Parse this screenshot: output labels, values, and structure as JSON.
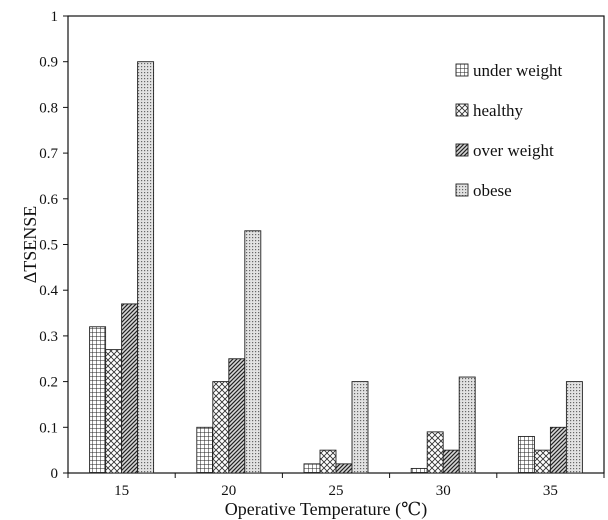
{
  "chart_data": {
    "type": "bar",
    "title": "",
    "xlabel": "Operative Temperature (℃)",
    "ylabel": "ΔTSENSE",
    "categories": [
      "15",
      "20",
      "25",
      "30",
      "35"
    ],
    "ylim": [
      0,
      1
    ],
    "yticks": [
      "0",
      "0.1",
      "0.2",
      "0.3",
      "0.4",
      "0.5",
      "0.6",
      "0.7",
      "0.8",
      "0.9",
      "1"
    ],
    "grid": false,
    "legend_position": "top-right",
    "series": [
      {
        "name": "under weight",
        "pattern": "grid",
        "values": [
          0.32,
          0.1,
          0.02,
          0.01,
          0.08
        ]
      },
      {
        "name": "healthy",
        "pattern": "crosshatch",
        "values": [
          0.27,
          0.2,
          0.05,
          0.09,
          0.05
        ]
      },
      {
        "name": "over weight",
        "pattern": "diagonal",
        "values": [
          0.37,
          0.25,
          0.02,
          0.05,
          0.1
        ]
      },
      {
        "name": "obese",
        "pattern": "dotted",
        "values": [
          0.9,
          0.53,
          0.2,
          0.21,
          0.2
        ]
      }
    ],
    "colors": {
      "axis": "#111111",
      "bar_fill": "#ffffff",
      "bar_stroke": "#222222"
    }
  }
}
